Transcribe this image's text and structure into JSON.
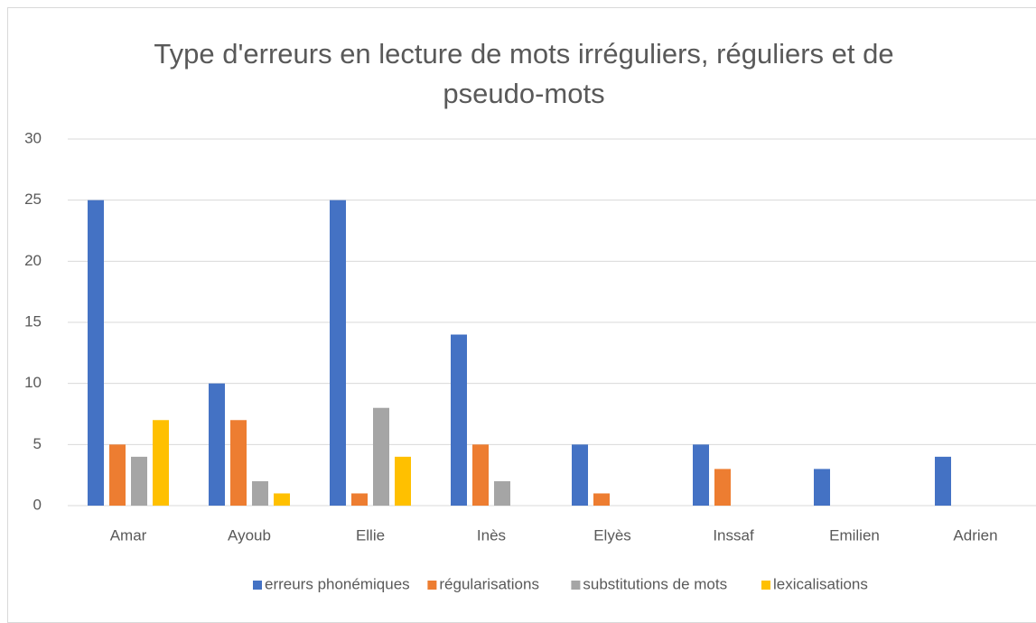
{
  "chart_data": {
    "type": "bar",
    "title": "Type d'erreurs en lecture de mots irréguliers, réguliers et de pseudo-mots",
    "categories": [
      "Amar",
      "Ayoub",
      "Ellie",
      "Inès",
      "Elyès",
      "Inssaf",
      "Emilien",
      "Adrien"
    ],
    "series": [
      {
        "name": "erreurs phonémiques",
        "color": "#4472c4",
        "values": [
          25,
          10,
          25,
          14,
          5,
          5,
          3,
          4
        ]
      },
      {
        "name": "régularisations",
        "color": "#ed7d31",
        "values": [
          5,
          7,
          1,
          5,
          1,
          3,
          0,
          0
        ]
      },
      {
        "name": "substitutions de mots",
        "color": "#a5a5a5",
        "values": [
          4,
          2,
          8,
          2,
          0,
          0,
          0,
          0
        ]
      },
      {
        "name": "lexicalisations",
        "color": "#ffc000",
        "values": [
          7,
          1,
          4,
          0,
          0,
          0,
          0,
          0
        ]
      }
    ],
    "ylim": [
      0,
      30
    ],
    "yticks": [
      0,
      5,
      10,
      15,
      20,
      25,
      30
    ],
    "grid": true,
    "legend": "bottom"
  }
}
